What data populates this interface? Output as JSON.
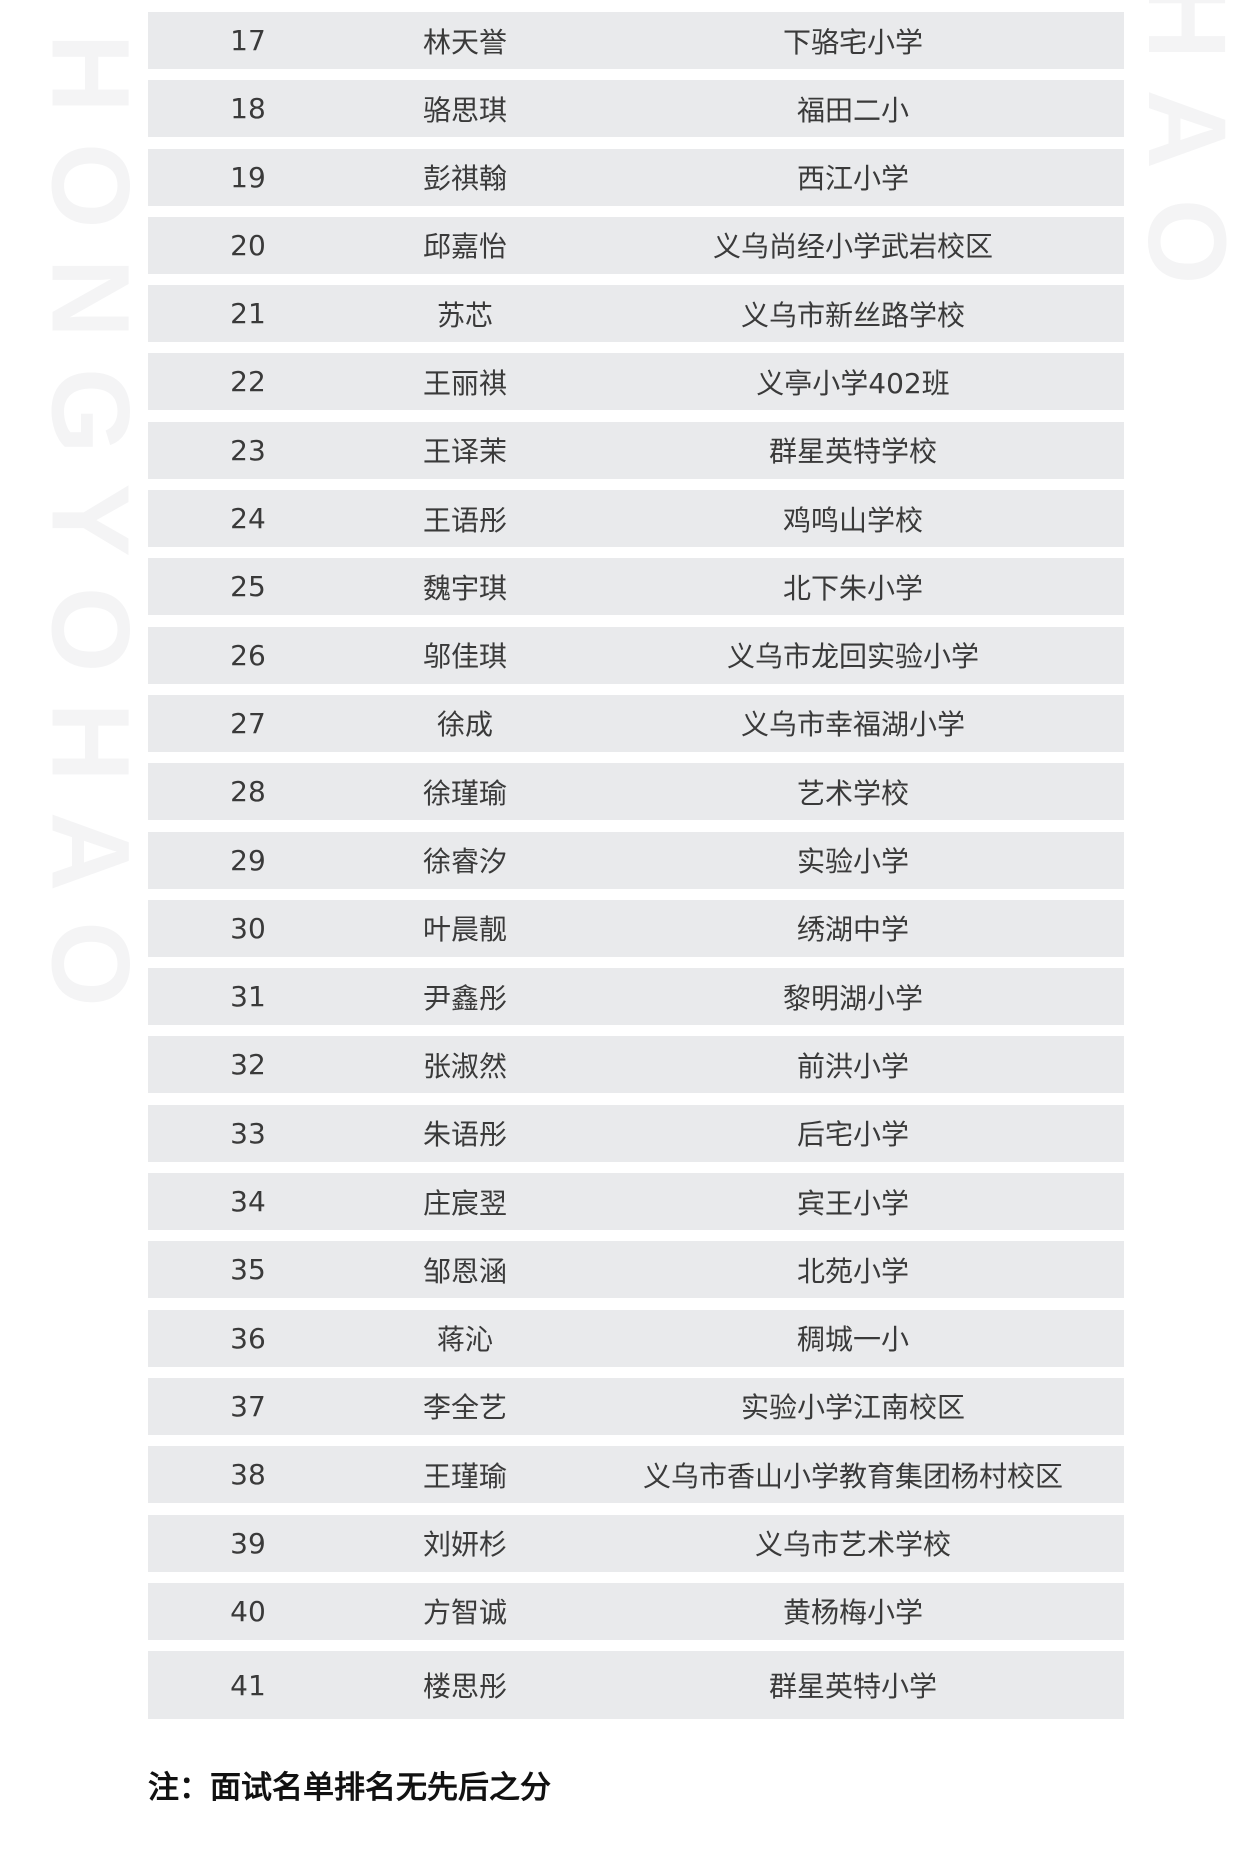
{
  "watermark": {
    "left": "HONGYOHAO",
    "right": "HAO"
  },
  "rows": [
    {
      "no": "17",
      "name": "林天誉",
      "school": "下骆宅小学"
    },
    {
      "no": "18",
      "name": "骆思琪",
      "school": "福田二小"
    },
    {
      "no": "19",
      "name": "彭祺翰",
      "school": "西江小学"
    },
    {
      "no": "20",
      "name": "邱嘉怡",
      "school": "义乌尚经小学武岩校区"
    },
    {
      "no": "21",
      "name": "苏芯",
      "school": "义乌市新丝路学校"
    },
    {
      "no": "22",
      "name": "王丽祺",
      "school": "义亭小学402班"
    },
    {
      "no": "23",
      "name": "王译茉",
      "school": "群星英特学校"
    },
    {
      "no": "24",
      "name": "王语彤",
      "school": "鸡鸣山学校"
    },
    {
      "no": "25",
      "name": "魏宇琪",
      "school": "北下朱小学"
    },
    {
      "no": "26",
      "name": "邬佳琪",
      "school": "义乌市龙回实验小学"
    },
    {
      "no": "27",
      "name": "徐成",
      "school": "义乌市幸福湖小学"
    },
    {
      "no": "28",
      "name": "徐瑾瑜",
      "school": "艺术学校"
    },
    {
      "no": "29",
      "name": "徐睿汐",
      "school": "实验小学"
    },
    {
      "no": "30",
      "name": "叶晨靓",
      "school": "绣湖中学"
    },
    {
      "no": "31",
      "name": "尹鑫彤",
      "school": "黎明湖小学"
    },
    {
      "no": "32",
      "name": "张淑然",
      "school": "前洪小学"
    },
    {
      "no": "33",
      "name": "朱语彤",
      "school": "后宅小学"
    },
    {
      "no": "34",
      "name": "庄宸翌",
      "school": "宾王小学"
    },
    {
      "no": "35",
      "name": "邹恩涵",
      "school": "北苑小学"
    },
    {
      "no": "36",
      "name": "蒋沁",
      "school": "稠城一小"
    },
    {
      "no": "37",
      "name": "李全艺",
      "school": "实验小学江南校区"
    },
    {
      "no": "38",
      "name": "王瑾瑜",
      "school": "义乌市香山小学教育集团杨村校区"
    },
    {
      "no": "39",
      "name": "刘妍杉",
      "school": "义乌市艺术学校"
    },
    {
      "no": "40",
      "name": "方智诚",
      "school": "黄杨梅小学"
    },
    {
      "no": "41",
      "name": "楼思彤",
      "school": "群星英特小学"
    }
  ],
  "note": "注：面试名单排名无先后之分"
}
